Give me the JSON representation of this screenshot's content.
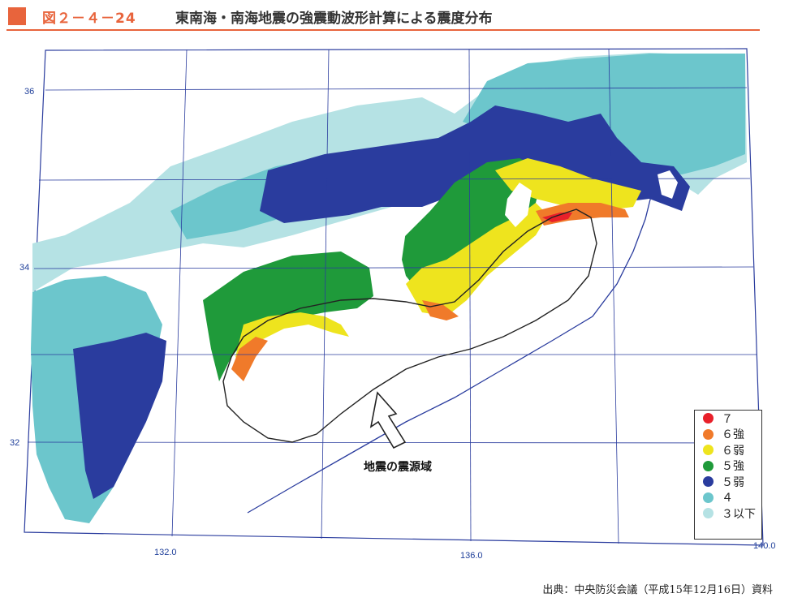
{
  "header": {
    "figure_number": "図２－４－24",
    "title": "東南海・南海地震の強震動波形計算による震度分布"
  },
  "axes": {
    "lat_labels": [
      "36",
      "34",
      "32"
    ],
    "lon_labels": [
      "132.0",
      "136.0",
      "140.0"
    ]
  },
  "source_region_label": "地震の震源域",
  "legend": {
    "items": [
      {
        "label": "７",
        "color": "#e8202a"
      },
      {
        "label": "６強",
        "color": "#f07a2a"
      },
      {
        "label": "６弱",
        "color": "#eee41e"
      },
      {
        "label": "５強",
        "color": "#1f9a3a"
      },
      {
        "label": "５弱",
        "color": "#2a3c9e"
      },
      {
        "label": "４",
        "color": "#6cc6cc"
      },
      {
        "label": "３以下",
        "color": "#b5e2e4"
      }
    ]
  },
  "citation": "出典：中央防災会議（平成15年12月16日）資料",
  "colors": {
    "accent": "#e8643c",
    "grid": "#2a3c9e"
  }
}
